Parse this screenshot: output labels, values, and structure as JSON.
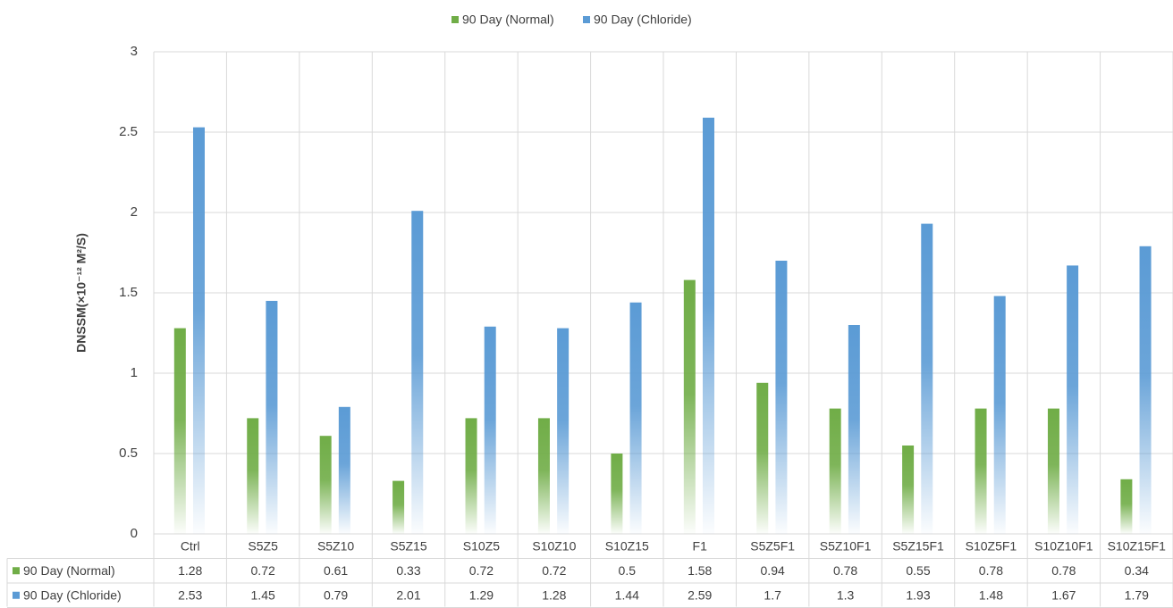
{
  "chart_data": {
    "type": "bar",
    "y_label": "DNSSM(×10⁻¹² M²/S)",
    "categories": [
      "Ctrl",
      "S5Z5",
      "S5Z10",
      "S5Z15",
      "S10Z5",
      "S10Z10",
      "S10Z15",
      "F1",
      "S5Z5F1",
      "S5Z10F1",
      "S5Z15F1",
      "S10Z5F1",
      "S10Z10F1",
      "S10Z15F1"
    ],
    "series": [
      {
        "name": "90 Day (Normal)",
        "color": "#70ad47",
        "values": [
          1.28,
          0.72,
          0.61,
          0.33,
          0.72,
          0.72,
          0.5,
          1.58,
          0.94,
          0.78,
          0.55,
          0.78,
          0.78,
          0.34
        ]
      },
      {
        "name": "90 Day (Chloride)",
        "color": "#5b9bd5",
        "values": [
          2.53,
          1.45,
          0.79,
          2.01,
          1.29,
          1.28,
          1.44,
          2.59,
          1.7,
          1.3,
          1.93,
          1.48,
          1.67,
          1.79
        ]
      }
    ],
    "ylim": [
      0,
      3
    ],
    "yticks": [
      0,
      0.5,
      1,
      1.5,
      2,
      2.5,
      3
    ],
    "grid": true,
    "legend": "top"
  }
}
